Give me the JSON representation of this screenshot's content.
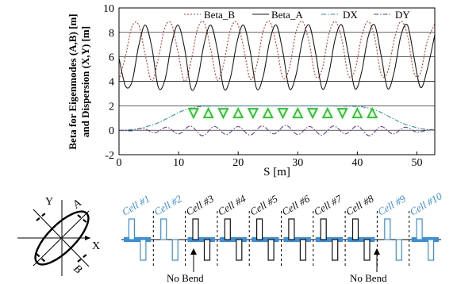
{
  "chart_data": {
    "type": "line",
    "xlabel": "S [m]",
    "ylabel": [
      "Beta for Eigenmodes (A,B) [m]",
      "and Dispersion (X,Y) [m]"
    ],
    "xlim": [
      0,
      53
    ],
    "ylim": [
      -2,
      10
    ],
    "xticks": [
      0,
      10,
      20,
      30,
      40,
      50
    ],
    "yticks": [
      -2,
      0,
      2,
      4,
      6,
      8,
      10
    ],
    "grid": "horizontal",
    "legend_position": "top",
    "series": [
      {
        "name": "Beta_B",
        "style": "dotted",
        "color": "#c0392b",
        "x": [
          0.0,
          1.1,
          2.2,
          3.3,
          4.4,
          5.5,
          6.6,
          7.7,
          8.8,
          9.9,
          11.0,
          12.1,
          13.2,
          14.3,
          15.4,
          16.5,
          17.6,
          18.7,
          19.8,
          20.9,
          22.0,
          23.1,
          24.2,
          25.3,
          26.4,
          27.5,
          28.6,
          29.7,
          30.8,
          31.9,
          33.0,
          34.1,
          35.2,
          36.3,
          37.4,
          38.5,
          39.6,
          40.7,
          41.8,
          42.9,
          44.0,
          45.1,
          46.2,
          47.3,
          48.4,
          49.5,
          50.6,
          51.7,
          53.0
        ],
        "y": [
          4.1,
          6.1,
          8.5,
          8.6,
          6.2,
          4.0,
          5.9,
          8.4,
          8.7,
          6.4,
          4.0,
          5.7,
          8.3,
          8.8,
          6.6,
          4.1,
          5.5,
          8.2,
          8.8,
          6.8,
          4.2,
          5.3,
          8.1,
          8.9,
          7.0,
          4.3,
          5.1,
          8.0,
          8.9,
          7.2,
          4.4,
          5.0,
          7.8,
          8.9,
          7.4,
          4.5,
          4.9,
          7.6,
          8.9,
          7.6,
          4.6,
          4.8,
          7.4,
          8.9,
          7.8,
          4.7,
          4.7,
          7.2,
          8.7
        ]
      },
      {
        "name": "Beta_A",
        "style": "solid",
        "color": "#1a1a1a",
        "x": [
          0.0,
          1.1,
          2.2,
          3.3,
          4.4,
          5.5,
          6.6,
          7.7,
          8.8,
          9.9,
          11.0,
          12.1,
          13.2,
          14.3,
          15.4,
          16.5,
          17.6,
          18.7,
          19.8,
          20.9,
          22.0,
          23.1,
          24.2,
          25.3,
          26.4,
          27.5,
          28.6,
          29.7,
          30.8,
          31.9,
          33.0,
          34.1,
          35.2,
          36.3,
          37.4,
          38.5,
          39.6,
          40.7,
          41.8,
          42.9,
          44.0,
          45.1,
          46.2,
          47.3,
          48.4,
          49.5,
          50.6,
          51.7,
          53.0
        ],
        "y": [
          5.9,
          3.6,
          4.0,
          6.9,
          8.6,
          6.8,
          3.5,
          4.1,
          7.0,
          8.6,
          6.7,
          3.4,
          4.2,
          7.1,
          8.6,
          6.6,
          3.4,
          4.3,
          7.2,
          8.6,
          6.5,
          3.4,
          4.4,
          7.3,
          8.6,
          6.4,
          3.4,
          4.5,
          7.4,
          8.6,
          6.3,
          3.4,
          4.6,
          7.5,
          8.6,
          6.2,
          3.4,
          4.7,
          7.6,
          8.6,
          6.1,
          3.4,
          4.8,
          7.7,
          8.6,
          6.0,
          3.5,
          4.9,
          7.8
        ]
      },
      {
        "name": "DX",
        "style": "dashdot",
        "color": "#2a9d9d",
        "x": [
          0,
          1,
          2,
          3,
          4,
          5,
          6,
          7,
          8,
          9,
          10,
          11,
          12,
          13,
          14,
          15,
          20,
          25,
          30,
          35,
          38,
          40,
          41,
          42,
          43,
          44,
          45,
          46,
          47,
          48,
          49,
          50,
          51,
          52,
          53
        ],
        "y": [
          0.0,
          0.02,
          0.05,
          0.1,
          0.2,
          0.35,
          0.5,
          0.7,
          0.95,
          1.2,
          1.45,
          1.65,
          1.8,
          1.9,
          1.95,
          1.97,
          1.98,
          1.98,
          1.98,
          1.98,
          1.97,
          1.95,
          1.9,
          1.8,
          1.65,
          1.45,
          1.2,
          0.95,
          0.7,
          0.5,
          0.35,
          0.2,
          0.1,
          0.04,
          0.0
        ]
      },
      {
        "name": "DY",
        "style": "dashdot",
        "color": "#6a3d9a",
        "x": [
          0,
          2,
          4,
          6,
          8,
          10,
          12,
          14,
          16,
          18,
          20,
          22,
          24,
          26,
          28,
          30,
          32,
          34,
          36,
          38,
          40,
          42,
          44,
          46,
          48,
          50,
          52,
          53
        ],
        "y": [
          0.0,
          -0.05,
          0.15,
          -0.2,
          0.25,
          -0.3,
          0.35,
          -0.45,
          0.3,
          -0.35,
          0.3,
          -0.4,
          0.35,
          -0.3,
          0.4,
          -0.35,
          0.3,
          -0.4,
          0.35,
          -0.3,
          0.35,
          -0.45,
          0.3,
          -0.3,
          0.25,
          -0.15,
          0.05,
          0.0
        ]
      }
    ],
    "markers": {
      "shape": "triangle",
      "color": "#22cc22",
      "x": [
        12.5,
        15.0,
        17.5,
        20.0,
        22.5,
        25.0,
        27.5,
        30.0,
        32.5,
        35.0,
        37.5,
        40.0,
        42.5
      ],
      "y": [
        1.4,
        1.4,
        1.4,
        1.4,
        1.4,
        1.4,
        1.4,
        1.4,
        1.4,
        1.4,
        1.4,
        1.4,
        1.4
      ],
      "orientation": [
        "down",
        "up",
        "down",
        "up",
        "down",
        "up",
        "down",
        "up",
        "down",
        "up",
        "down",
        "up",
        "up"
      ]
    }
  },
  "lattice": {
    "cells": [
      {
        "label": "Cell #1",
        "color": "#3a8fd8"
      },
      {
        "label": "Cell #2",
        "color": "#3a8fd8"
      },
      {
        "label": "Cell #3",
        "color": "#111111"
      },
      {
        "label": "Cell #4",
        "color": "#111111"
      },
      {
        "label": "Cell #5",
        "color": "#111111"
      },
      {
        "label": "Cell #6",
        "color": "#111111"
      },
      {
        "label": "Cell #7",
        "color": "#111111"
      },
      {
        "label": "Cell #8",
        "color": "#111111"
      },
      {
        "label": "Cell #9",
        "color": "#3a8fd8"
      },
      {
        "label": "Cell #10",
        "color": "#3a8fd8"
      }
    ],
    "notes": [
      "No Bend",
      "No Bend"
    ]
  },
  "beam_sketch": {
    "labels": {
      "y_axis": "Y",
      "x_axis": "X",
      "mode_a": "A",
      "mode_b": "B"
    }
  }
}
